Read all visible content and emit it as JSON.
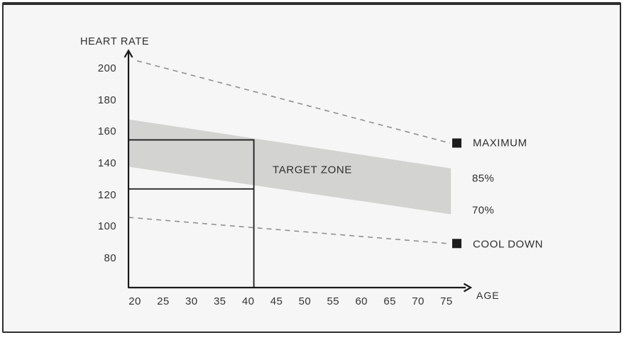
{
  "figure": {
    "title": "HEART RATE",
    "x_axis_label": "AGE"
  },
  "colors": {
    "page_background": "#ffffff",
    "panel_background": "#f6f6f7",
    "panel_border": "#2e2e2e",
    "band_fill": "#d3d3d2",
    "solid_line": "#1a1a1a",
    "dashed_line": "#8f8f8f",
    "text": "#2e2e2e",
    "marker": "#1d1d1d"
  },
  "chart_data": {
    "type": "area",
    "title": "HEART RATE",
    "xlabel": "AGE",
    "ylabel": "HEART RATE",
    "x_ticks": [
      20,
      25,
      30,
      35,
      40,
      45,
      50,
      55,
      60,
      65,
      70,
      75
    ],
    "y_ticks": [
      200,
      180,
      160,
      140,
      120,
      100,
      80
    ],
    "xlim": [
      18.8,
      79.5
    ],
    "ylim": [
      61,
      212
    ],
    "grid": false,
    "legend_position": "right",
    "series": [
      {
        "name": "MAXIMUM",
        "type": "line",
        "style": "dashed",
        "points": [
          [
            20.4,
            205
          ],
          [
            75.6,
            153
          ]
        ]
      },
      {
        "name": "TARGET ZONE",
        "type": "band",
        "x": [
          18.9,
          75.8
        ],
        "y_upper": [
          168,
          137
        ],
        "y_lower": [
          138,
          108
        ]
      },
      {
        "name": "COOL DOWN",
        "type": "line",
        "style": "dashed",
        "points": [
          [
            18.9,
            106
          ],
          [
            75.2,
            89.5
          ]
        ]
      }
    ],
    "reading_box": {
      "age": 41,
      "hr_high": 155,
      "hr_low": 124
    },
    "annotations": [
      {
        "id": "target_zone",
        "text": "TARGET ZONE"
      },
      {
        "id": "maximum",
        "text": "MAXIMUM"
      },
      {
        "id": "pct85",
        "text": "85%"
      },
      {
        "id": "pct70",
        "text": "70%"
      },
      {
        "id": "cool_down",
        "text": "COOL DOWN"
      }
    ]
  }
}
